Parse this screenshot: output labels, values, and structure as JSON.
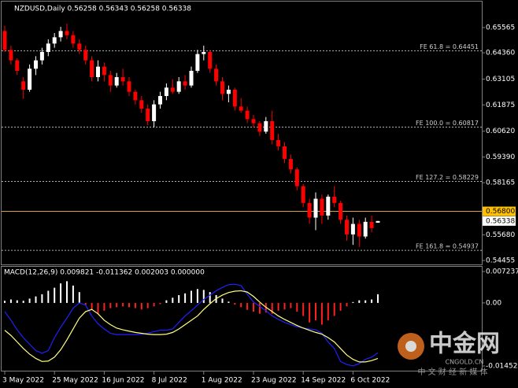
{
  "chart_data": [
    {
      "type": "candlestick",
      "title": "NZDUSD,Daily  0.56258 0.56343 0.56258 0.56338",
      "categories": [
        "3 May 2022",
        null,
        null,
        null,
        null,
        null,
        null,
        null,
        "25 May 2022",
        null,
        null,
        null,
        null,
        null,
        null,
        null,
        "16 Jun 2022",
        null,
        null,
        null,
        null,
        null,
        null,
        null,
        "8 Jul 2022",
        null,
        null,
        null,
        null,
        null,
        null,
        null,
        "1 Aug 2022",
        null,
        null,
        null,
        null,
        null,
        null,
        null,
        "23 Aug 2022",
        null,
        null,
        null,
        null,
        null,
        null,
        null,
        "14 Sep 2022",
        null,
        null,
        null,
        null,
        null,
        null,
        null,
        "6 Oct 2022",
        null,
        null,
        null,
        null
      ],
      "open": [
        0.654,
        0.645,
        0.64,
        0.63,
        0.626,
        0.636,
        0.64,
        0.644,
        0.648,
        0.651,
        0.654,
        0.652,
        0.648,
        0.645,
        0.64,
        0.632,
        0.637,
        0.633,
        0.628,
        0.632,
        0.63,
        0.625,
        0.621,
        0.617,
        0.611,
        0.619,
        0.623,
        0.627,
        0.625,
        0.63,
        0.628,
        0.635,
        0.643,
        0.644,
        0.636,
        0.63,
        0.624,
        0.626,
        0.618,
        0.616,
        0.612,
        0.61,
        0.606,
        0.611,
        0.602,
        0.599,
        0.593,
        0.588,
        0.58,
        0.572,
        0.565,
        0.574,
        0.566,
        0.575,
        0.572,
        0.564,
        0.557,
        0.562,
        0.556,
        0.563,
        0.56258
      ],
      "high": [
        0.6565,
        0.647,
        0.641,
        0.632,
        0.638,
        0.642,
        0.646,
        0.65,
        0.653,
        0.656,
        0.6575,
        0.654,
        0.65,
        0.647,
        0.642,
        0.64,
        0.639,
        0.635,
        0.634,
        0.636,
        0.632,
        0.626,
        0.623,
        0.619,
        0.621,
        0.625,
        0.629,
        0.631,
        0.632,
        0.633,
        0.637,
        0.645,
        0.647,
        0.645,
        0.638,
        0.632,
        0.628,
        0.627,
        0.622,
        0.618,
        0.614,
        0.611,
        0.613,
        0.616,
        0.605,
        0.601,
        0.595,
        0.589,
        0.581,
        0.574,
        0.577,
        0.576,
        0.576,
        0.58,
        0.573,
        0.566,
        0.565,
        0.564,
        0.565,
        0.566,
        0.56343
      ],
      "low": [
        0.644,
        0.638,
        0.633,
        0.6217,
        0.625,
        0.633,
        0.638,
        0.642,
        0.646,
        0.649,
        0.65,
        0.646,
        0.643,
        0.638,
        0.63,
        0.63,
        0.63,
        0.625,
        0.627,
        0.628,
        0.623,
        0.619,
        0.615,
        0.609,
        0.608,
        0.617,
        0.621,
        0.624,
        0.624,
        0.626,
        0.627,
        0.634,
        0.64,
        0.634,
        0.628,
        0.621,
        0.62,
        0.616,
        0.615,
        0.61,
        0.608,
        0.604,
        0.605,
        0.6,
        0.597,
        0.591,
        0.586,
        0.578,
        0.57,
        0.562,
        0.559,
        0.562,
        0.564,
        0.57,
        0.562,
        0.554,
        0.552,
        0.551,
        0.555,
        0.558,
        0.56258
      ],
      "close": [
        0.645,
        0.64,
        0.635,
        0.626,
        0.636,
        0.64,
        0.644,
        0.648,
        0.651,
        0.654,
        0.652,
        0.648,
        0.645,
        0.64,
        0.632,
        0.637,
        0.633,
        0.628,
        0.632,
        0.63,
        0.625,
        0.621,
        0.617,
        0.611,
        0.619,
        0.623,
        0.627,
        0.625,
        0.63,
        0.628,
        0.635,
        0.643,
        0.644,
        0.636,
        0.63,
        0.624,
        0.626,
        0.618,
        0.616,
        0.612,
        0.61,
        0.606,
        0.611,
        0.602,
        0.599,
        0.593,
        0.588,
        0.58,
        0.572,
        0.565,
        0.574,
        0.566,
        0.575,
        0.572,
        0.564,
        0.557,
        0.562,
        0.556,
        0.563,
        0.56,
        0.56338
      ],
      "up_color": "#ffffff",
      "down_color": "#ff0000",
      "ylim": [
        0.54268,
        0.6669
      ],
      "yticks": [
        0.65565,
        {
          "value": 0.6436,
          "label": "0.64360"
        },
        0.63105,
        0.61875,
        {
          "value": 0.6062,
          "label": "0.60620"
        },
        {
          "value": 0.5939,
          "label": "0.59390"
        },
        0.58165,
        {
          "value": 0.5568,
          "label": "0.55680"
        },
        0.54455
      ],
      "levels": [
        {
          "label": "FE 61.8 = 0.64451",
          "value": 0.64451
        },
        {
          "label": "FE 100.0 = 0.60817",
          "value": 0.60817
        },
        {
          "label": "FE 127.2 = 0.58229",
          "value": 0.58229
        },
        {
          "label": "FE 161.8 = 0.54937",
          "value": 0.54937
        }
      ],
      "price_line": {
        "value": 0.568,
        "label": "0.56800",
        "color": "#d8a040"
      },
      "bid": {
        "value": 0.56338,
        "label": "0.56338"
      }
    },
    {
      "type": "macd",
      "title": "MACD(12,26,9) 0.009821 -0.011362 0.002003 0.000000",
      "ylim": [
        -0.015436,
        0.008144
      ],
      "yticks": [
        0.007237,
        {
          "value": 0,
          "label": "0.00"
        },
        -0.014529
      ],
      "histogram": {
        "up_color": "#ffffff",
        "down_color": "#ff2020",
        "values": [
          0.0005,
          0.0008,
          0.0006,
          0.0005,
          0.001,
          0.0015,
          0.002,
          0.0028,
          0.0035,
          0.0045,
          0.005,
          0.004,
          0.0025,
          -0.0005,
          -0.0015,
          -0.0025,
          -0.0018,
          -0.0012,
          -0.001,
          -0.0008,
          -0.001,
          -0.0012,
          -0.0015,
          -0.0012,
          -0.0008,
          -0.0003,
          0.0006,
          0.0012,
          0.0018,
          0.0022,
          0.0028,
          0.0032,
          0.003,
          0.0025,
          0.0018,
          0.001,
          0.0003,
          -0.0004,
          -0.001,
          -0.0016,
          -0.002,
          -0.0025,
          -0.0022,
          -0.0025,
          -0.0018,
          -0.0015,
          -0.0012,
          -0.002,
          -0.003,
          -0.0045,
          -0.004,
          -0.005,
          -0.004,
          -0.003,
          -0.0018,
          -0.0008,
          0.0002,
          0.0006,
          0.0006,
          0.0008,
          0.002003
        ]
      },
      "lines": [
        {
          "color": "#2020ff",
          "values": [
            -0.002,
            -0.004,
            -0.0062,
            -0.008,
            -0.0095,
            -0.011,
            -0.0116,
            -0.011,
            -0.008,
            -0.0056,
            -0.0035,
            -0.0012,
            0,
            -0.0005,
            -0.003,
            -0.0048,
            -0.006,
            -0.007,
            -0.0073,
            -0.0073,
            -0.0073,
            -0.0073,
            -0.0072,
            -0.007,
            -0.0066,
            -0.0063,
            -0.0063,
            -0.006,
            -0.0045,
            -0.003,
            -0.0018,
            -0.0005,
            0.0008,
            0.0018,
            0.0028,
            0.0036,
            0.0042,
            0.0043,
            0.004,
            0.002,
            0.0002,
            -0.0008,
            -0.0018,
            -0.003,
            -0.0038,
            -0.0045,
            -0.005,
            -0.0055,
            -0.0058,
            -0.006,
            -0.0062,
            -0.007,
            -0.009,
            -0.0105,
            -0.0135,
            -0.0142,
            -0.0145,
            -0.014,
            -0.013,
            -0.0125,
            -0.0115
          ]
        },
        {
          "color": "#ffff80",
          "values": [
            -0.0063,
            -0.0075,
            -0.009,
            -0.0105,
            -0.0118,
            -0.0128,
            -0.0135,
            -0.0134,
            -0.0125,
            -0.0108,
            -0.0085,
            -0.006,
            -0.0035,
            -0.002,
            -0.0015,
            -0.0025,
            -0.004,
            -0.005,
            -0.0058,
            -0.0062,
            -0.0065,
            -0.0068,
            -0.007,
            -0.0072,
            -0.0073,
            -0.0073,
            -0.0072,
            -0.0068,
            -0.006,
            -0.005,
            -0.004,
            -0.003,
            -0.0015,
            -0.0002,
            0.001,
            0.0018,
            0.0024,
            0.0027,
            0.0028,
            0.0025,
            0.0015,
            0.0002,
            -0.001,
            -0.002,
            -0.003,
            -0.0038,
            -0.0045,
            -0.0052,
            -0.0058,
            -0.0063,
            -0.0068,
            -0.0072,
            -0.008,
            -0.009,
            -0.0105,
            -0.012,
            -0.013,
            -0.0136,
            -0.0136,
            -0.0133,
            -0.0128
          ]
        }
      ],
      "watermark": {
        "logo": "中金网",
        "site": "CNGOLD.CN",
        "slogan": "中 文 财 经 新 媒 体"
      }
    }
  ]
}
